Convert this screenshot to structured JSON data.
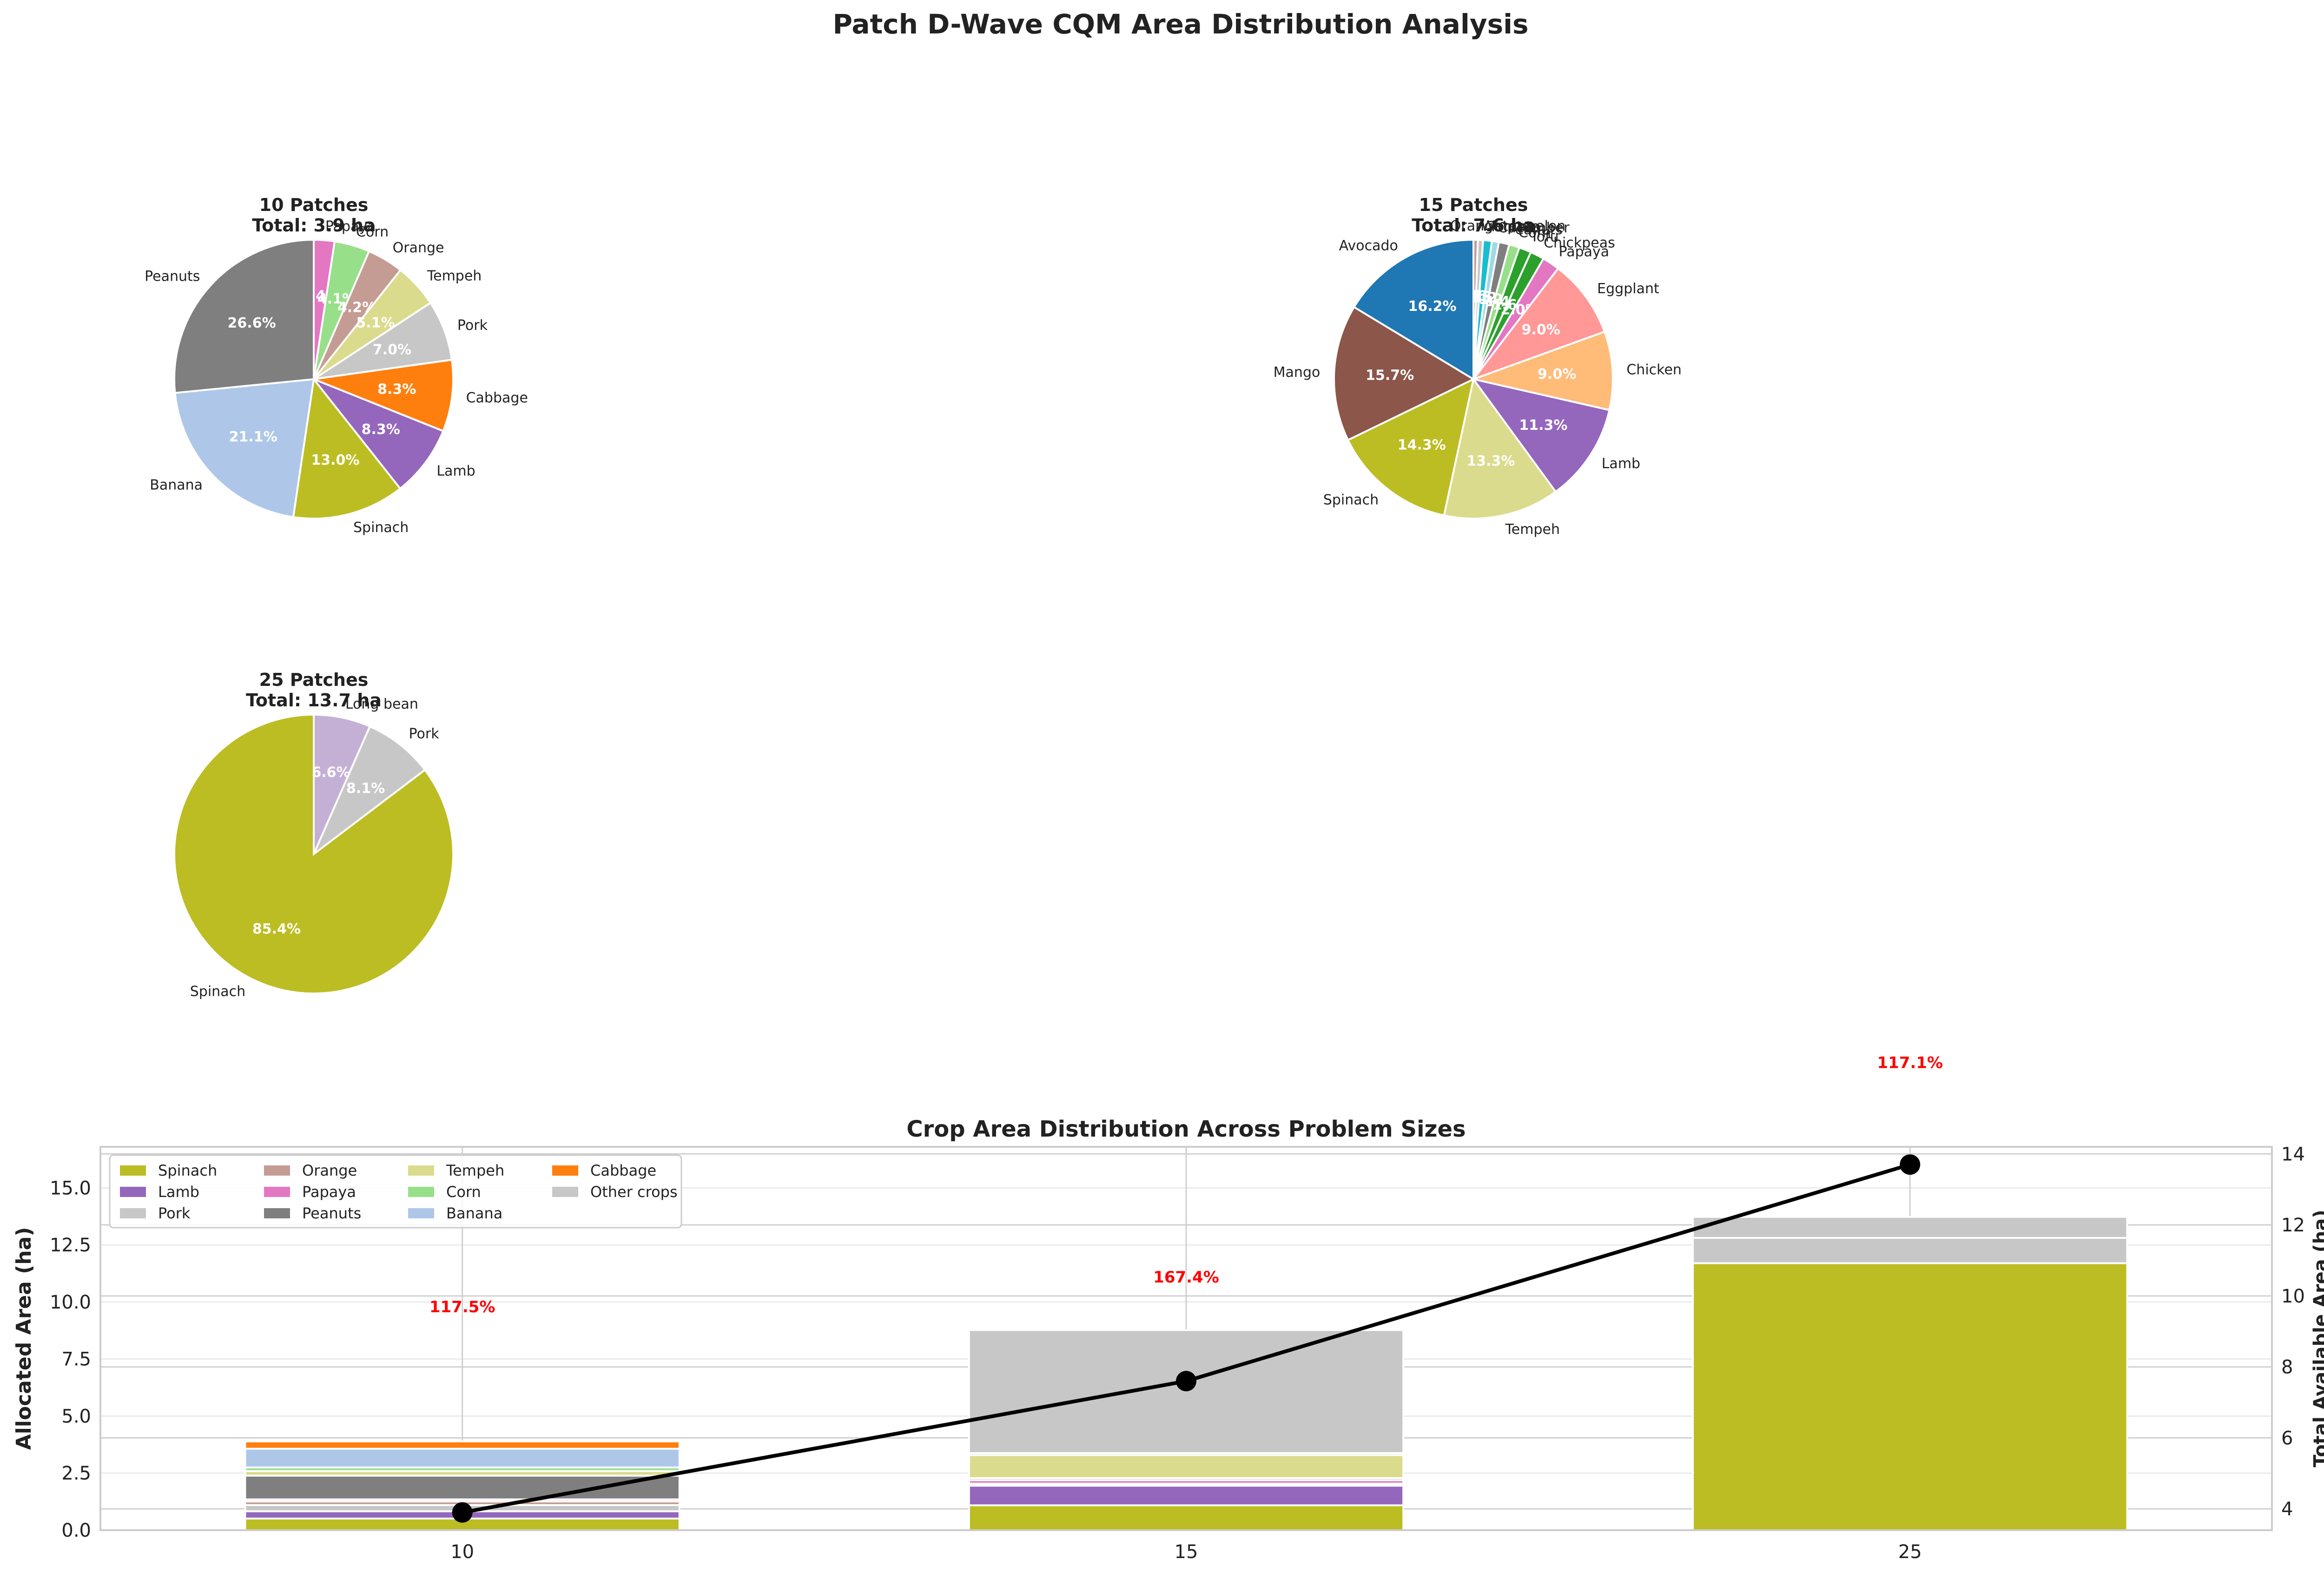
{
  "figure": {
    "title": "Patch D-Wave CQM Area Distribution Analysis"
  },
  "chart_data": [
    {
      "type": "pie",
      "title": "10 Patches",
      "subtitle": "Total: 3.9 ha",
      "slices": [
        {
          "label": "Papaya",
          "pct": "2.4%",
          "value": 2.4,
          "color": "#e377c2"
        },
        {
          "label": "Corn",
          "pct": "4.1%",
          "value": 4.1,
          "color": "#98df8a"
        },
        {
          "label": "Orange",
          "pct": "4.2%",
          "value": 4.2,
          "color": "#c49c94"
        },
        {
          "label": "Tempeh",
          "pct": "5.1%",
          "value": 5.1,
          "color": "#dbdb8d"
        },
        {
          "label": "Pork",
          "pct": "7.0%",
          "value": 7.0,
          "color": "#c7c7c7"
        },
        {
          "label": "Cabbage",
          "pct": "8.3%",
          "value": 8.3,
          "color": "#ff7f0e"
        },
        {
          "label": "Lamb",
          "pct": "8.3%",
          "value": 8.3,
          "color": "#9467bd"
        },
        {
          "label": "Spinach",
          "pct": "13.0%",
          "value": 13.0,
          "color": "#bcbd22"
        },
        {
          "label": "Banana",
          "pct": "21.1%",
          "value": 21.1,
          "color": "#aec7e8"
        },
        {
          "label": "Peanuts",
          "pct": "26.6%",
          "value": 26.6,
          "color": "#7f7f7f"
        }
      ]
    },
    {
      "type": "pie",
      "title": "15 Patches",
      "subtitle": "Total: 7.6 ha",
      "slices": [
        {
          "label": "Orange",
          "pct": "0.5%",
          "value": 0.5,
          "color": "#c49c94"
        },
        {
          "label": "Watermelon",
          "pct": "0.6%",
          "value": 0.6,
          "color": "#c7c7c7"
        },
        {
          "label": "Tomato",
          "pct": "1.0%",
          "value": 1.0,
          "color": "#17becf"
        },
        {
          "label": "Cucumber",
          "pct": "0.8%",
          "value": 0.8,
          "color": "#9edae5"
        },
        {
          "label": "Peanuts",
          "pct": "1.2%",
          "value": 1.2,
          "color": "#7f7f7f"
        },
        {
          "label": "Corn",
          "pct": "1.2%",
          "value": 1.2,
          "color": "#98df8a"
        },
        {
          "label": "Tofu",
          "pct": "1.4%",
          "value": 1.4,
          "color": "#2ca02c"
        },
        {
          "label": "Chickpeas",
          "pct": "1.6%",
          "value": 1.6,
          "color": "#2ca02c"
        },
        {
          "label": "Papaya",
          "pct": "2.0%",
          "value": 2.0,
          "color": "#e377c2"
        },
        {
          "label": "Eggplant",
          "pct": "9.0%",
          "value": 9.0,
          "color": "#ff9896"
        },
        {
          "label": "Chicken",
          "pct": "9.0%",
          "value": 9.0,
          "color": "#ffbb78"
        },
        {
          "label": "Lamb",
          "pct": "11.3%",
          "value": 11.3,
          "color": "#9467bd"
        },
        {
          "label": "Tempeh",
          "pct": "13.3%",
          "value": 13.3,
          "color": "#dbdb8d"
        },
        {
          "label": "Spinach",
          "pct": "14.3%",
          "value": 14.3,
          "color": "#bcbd22"
        },
        {
          "label": "Mango",
          "pct": "15.7%",
          "value": 15.7,
          "color": "#8c564b"
        },
        {
          "label": "Avocado",
          "pct": "16.2%",
          "value": 16.2,
          "color": "#1f77b4"
        }
      ]
    },
    {
      "type": "pie",
      "title": "25 Patches",
      "subtitle": "Total: 13.7 ha",
      "slices": [
        {
          "label": "Long bean",
          "pct": "6.6%",
          "value": 6.6,
          "color": "#c5b0d5"
        },
        {
          "label": "Pork",
          "pct": "8.1%",
          "value": 8.1,
          "color": "#c7c7c7"
        },
        {
          "label": "Spinach",
          "pct": "85.4%",
          "value": 85.4,
          "color": "#bcbd22"
        }
      ]
    },
    {
      "type": "bar",
      "stacked": true,
      "title": "Crop Area Distribution Across Problem Sizes",
      "xlabel": "Number of Patches",
      "ylabel": "Allocated Area (ha)",
      "y2label": "Total Available Area (ha)",
      "categories": [
        "10",
        "15",
        "25"
      ],
      "ylim": [
        0,
        16.8
      ],
      "yticks": [
        "0.0",
        "2.5",
        "5.0",
        "7.5",
        "10.0",
        "12.5",
        "15.0"
      ],
      "y2lim": [
        3.4,
        14.2
      ],
      "y2ticks": [
        "4",
        "6",
        "8",
        "10",
        "12",
        "14"
      ],
      "series": [
        {
          "name": "Spinach",
          "color": "#bcbd22",
          "values": [
            0.51,
            1.09,
            11.7
          ]
        },
        {
          "name": "Lamb",
          "color": "#9467bd",
          "values": [
            0.32,
            0.86,
            0.0
          ]
        },
        {
          "name": "Pork",
          "color": "#c7c7c7",
          "values": [
            0.27,
            0.05,
            1.11
          ]
        },
        {
          "name": "Orange",
          "color": "#c49c94",
          "values": [
            0.16,
            0.04,
            0.0
          ]
        },
        {
          "name": "Papaya",
          "color": "#e377c2",
          "values": [
            0.09,
            0.15,
            0.0
          ]
        },
        {
          "name": "Peanuts",
          "color": "#7f7f7f",
          "values": [
            1.04,
            0.09,
            0.0
          ]
        },
        {
          "name": "Tempeh",
          "color": "#dbdb8d",
          "values": [
            0.2,
            1.01,
            0.0
          ]
        },
        {
          "name": "Corn",
          "color": "#98df8a",
          "values": [
            0.16,
            0.09,
            0.0
          ]
        },
        {
          "name": "Banana",
          "color": "#aec7e8",
          "values": [
            0.82,
            0.0,
            0.0
          ]
        },
        {
          "name": "Cabbage",
          "color": "#ff7f0e",
          "values": [
            0.32,
            0.0,
            0.0
          ]
        },
        {
          "name": "Other crops",
          "color": "#c7c7c7",
          "values": [
            0.0,
            5.39,
            0.92
          ]
        }
      ],
      "line": {
        "values": [
          3.9,
          7.6,
          13.7
        ],
        "color": "#000000"
      },
      "annotations": [
        {
          "text": "117.5%",
          "category": "10",
          "y": 9.8
        },
        {
          "text": "167.4%",
          "category": "15",
          "y": 11.1
        },
        {
          "text": "117.1%",
          "category": "25",
          "y": 20.5
        }
      ],
      "legend": {
        "location": "upper-left",
        "columns": 4
      }
    }
  ]
}
